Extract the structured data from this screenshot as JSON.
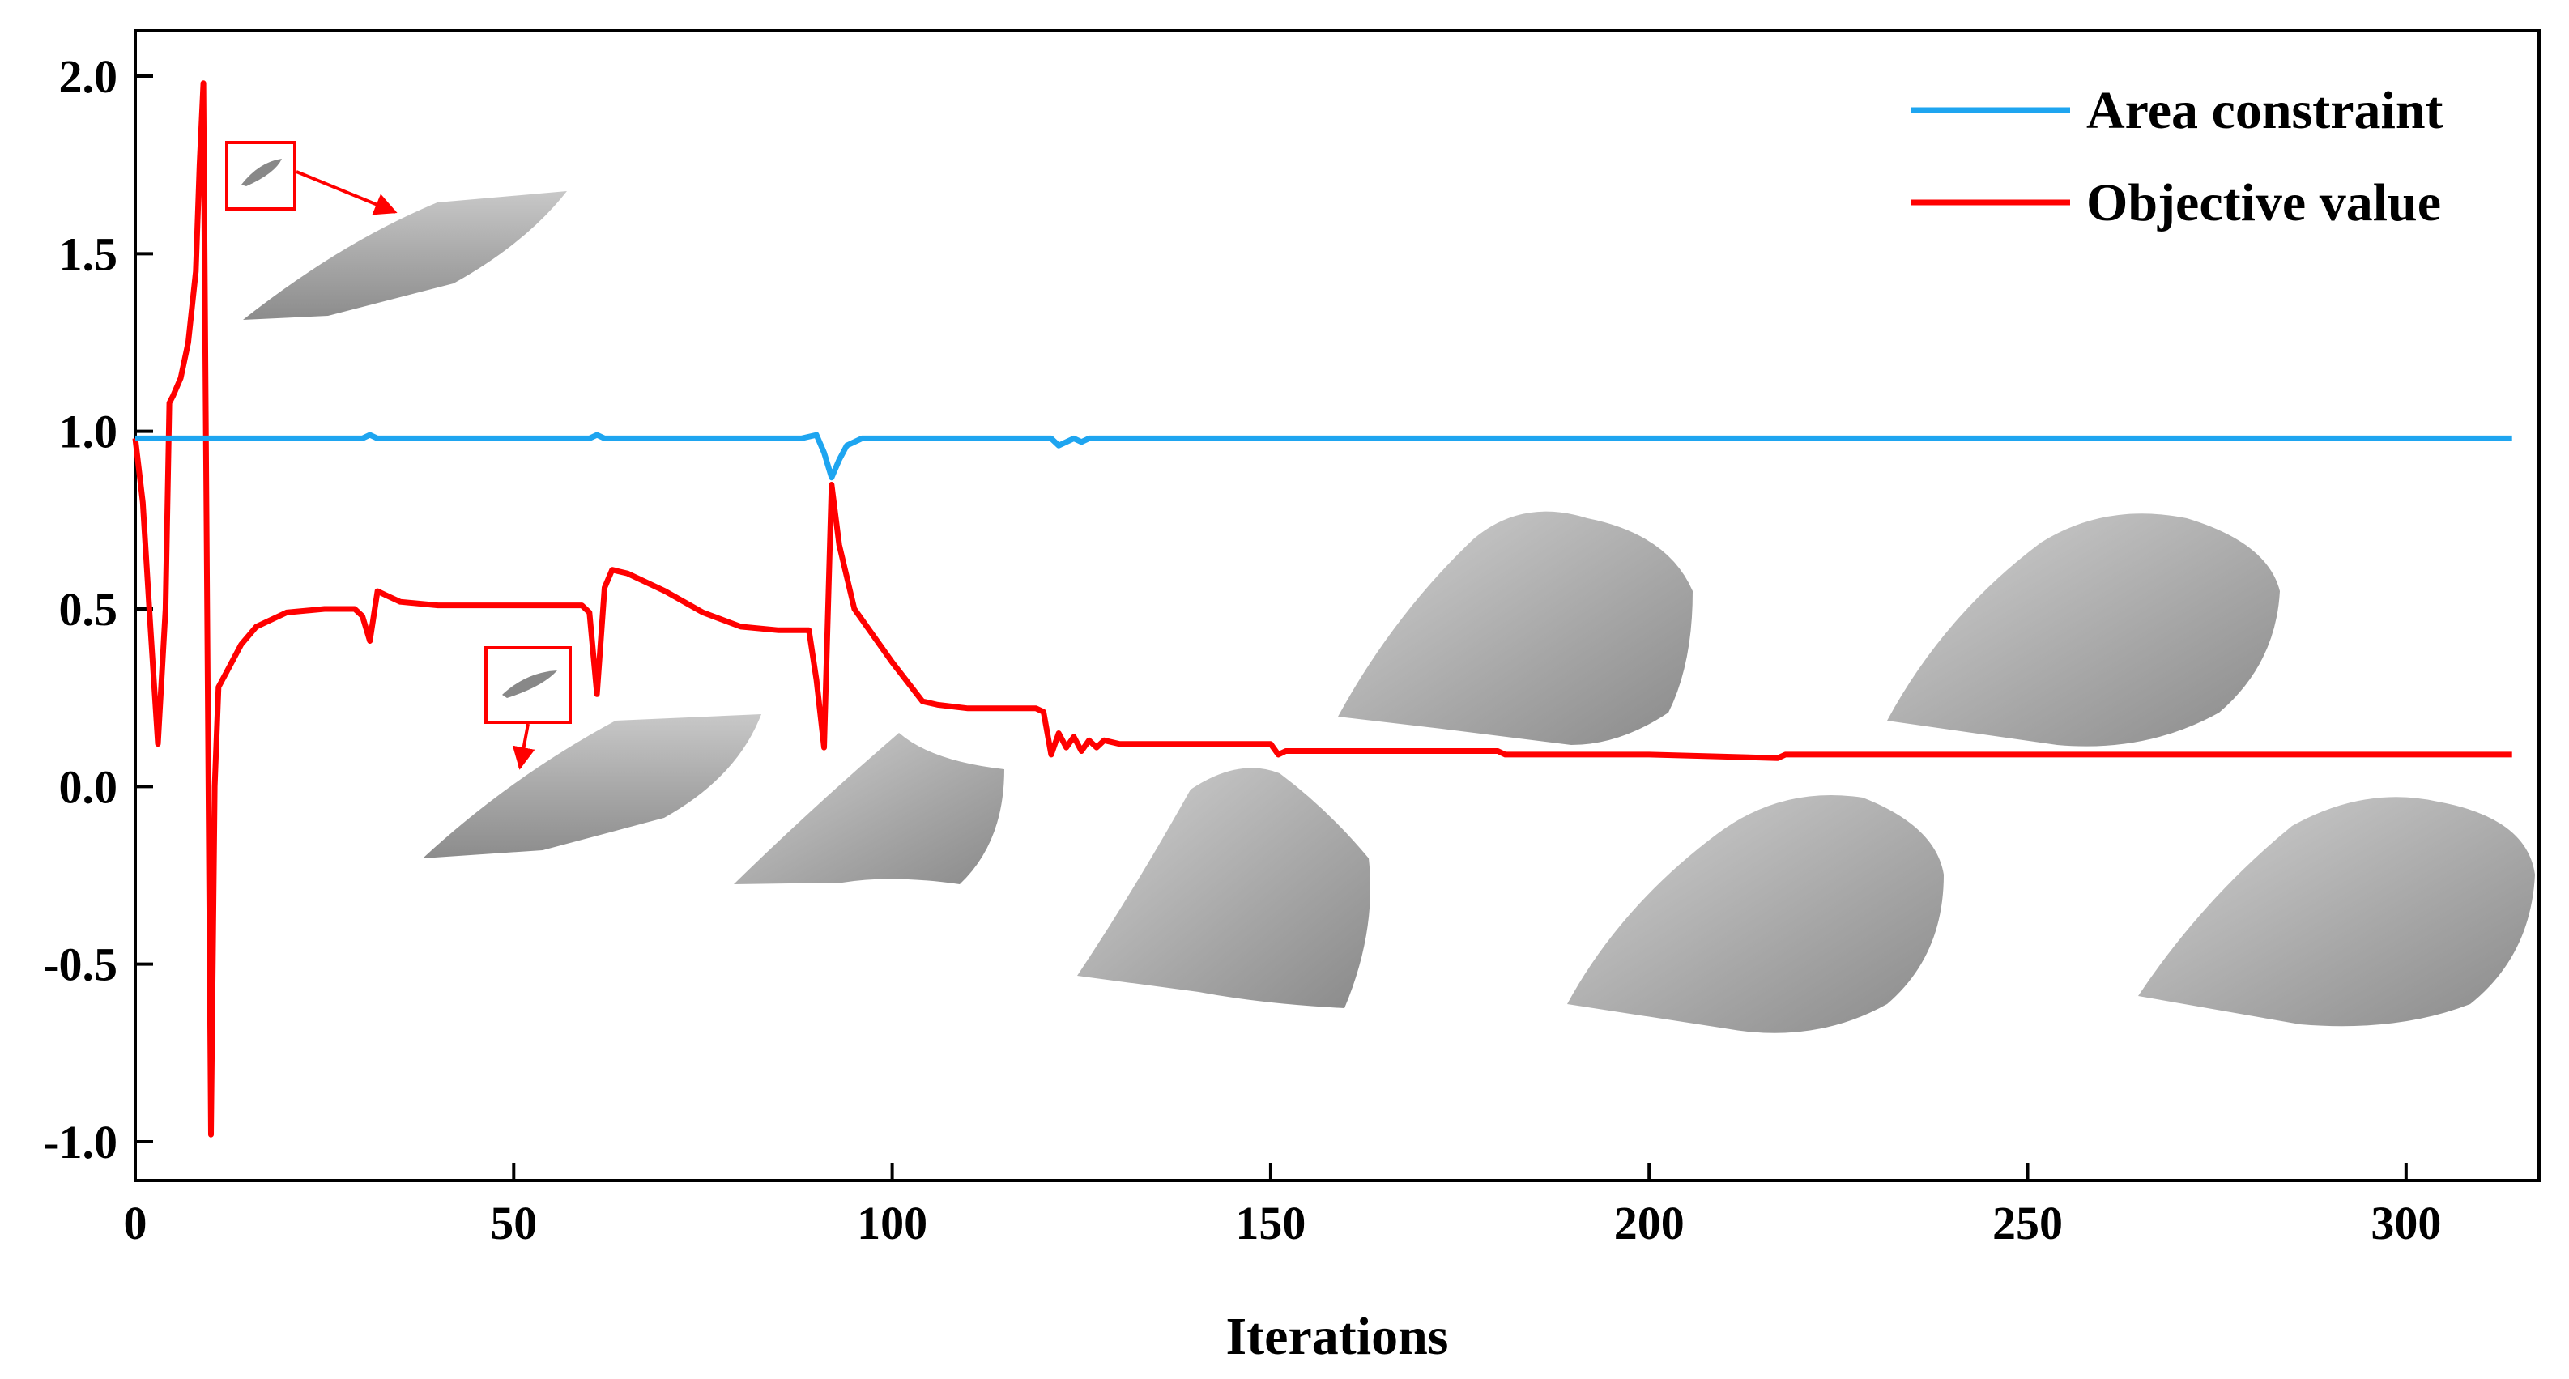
{
  "chart_data": {
    "type": "line",
    "title": "",
    "xlabel": "Iterations",
    "ylabel": "",
    "xlim": [
      0,
      318
    ],
    "ylim": [
      -1.1,
      2.0
    ],
    "xticks": [
      0,
      50,
      100,
      150,
      200,
      250,
      300
    ],
    "yticks": [
      -1.0,
      -0.5,
      0.0,
      0.5,
      1.0,
      1.5,
      2.0
    ],
    "xtick_labels": [
      "0",
      "50",
      "100",
      "150",
      "200",
      "250",
      "300"
    ],
    "ytick_labels": [
      "-1.0",
      "-0.5",
      "0.0",
      "0.5",
      "1.0",
      "1.5",
      "2.0"
    ],
    "legend_position": "top-right",
    "series": [
      {
        "name": "Area constraint",
        "color": "#1ea5f0",
        "points": [
          [
            0,
            0.98
          ],
          [
            2,
            0.98
          ],
          [
            5,
            0.98
          ],
          [
            10,
            0.98
          ],
          [
            20,
            0.98
          ],
          [
            30,
            0.98
          ],
          [
            31,
            0.99
          ],
          [
            32,
            0.98
          ],
          [
            50,
            0.98
          ],
          [
            60,
            0.98
          ],
          [
            61,
            0.99
          ],
          [
            62,
            0.98
          ],
          [
            80,
            0.98
          ],
          [
            88,
            0.98
          ],
          [
            90,
            0.99
          ],
          [
            91,
            0.94
          ],
          [
            92,
            0.87
          ],
          [
            93,
            0.92
          ],
          [
            94,
            0.96
          ],
          [
            96,
            0.98
          ],
          [
            100,
            0.98
          ],
          [
            110,
            0.98
          ],
          [
            120,
            0.98
          ],
          [
            121,
            0.98
          ],
          [
            122,
            0.96
          ],
          [
            123,
            0.97
          ],
          [
            124,
            0.98
          ],
          [
            125,
            0.97
          ],
          [
            126,
            0.98
          ],
          [
            130,
            0.98
          ],
          [
            160,
            0.98
          ],
          [
            200,
            0.98
          ],
          [
            250,
            0.98
          ],
          [
            300,
            0.98
          ],
          [
            314,
            0.98
          ]
        ]
      },
      {
        "name": "Objective value",
        "color": "#ff0000",
        "points": [
          [
            0,
            0.98
          ],
          [
            1,
            0.8
          ],
          [
            2,
            0.45
          ],
          [
            3,
            0.12
          ],
          [
            4,
            0.5
          ],
          [
            4.5,
            1.08
          ],
          [
            5,
            1.1
          ],
          [
            6,
            1.15
          ],
          [
            7,
            1.25
          ],
          [
            8,
            1.45
          ],
          [
            8.5,
            1.75
          ],
          [
            9,
            1.98
          ],
          [
            9.5,
            0.5
          ],
          [
            10,
            -0.98
          ],
          [
            10.5,
            0.0
          ],
          [
            11,
            0.28
          ],
          [
            12,
            0.32
          ],
          [
            14,
            0.4
          ],
          [
            16,
            0.45
          ],
          [
            20,
            0.49
          ],
          [
            25,
            0.5
          ],
          [
            29,
            0.5
          ],
          [
            30,
            0.48
          ],
          [
            31,
            0.41
          ],
          [
            32,
            0.55
          ],
          [
            33,
            0.54
          ],
          [
            35,
            0.52
          ],
          [
            40,
            0.51
          ],
          [
            50,
            0.51
          ],
          [
            59,
            0.51
          ],
          [
            60,
            0.49
          ],
          [
            61,
            0.26
          ],
          [
            62,
            0.56
          ],
          [
            63,
            0.61
          ],
          [
            65,
            0.6
          ],
          [
            70,
            0.55
          ],
          [
            75,
            0.49
          ],
          [
            80,
            0.45
          ],
          [
            85,
            0.44
          ],
          [
            89,
            0.44
          ],
          [
            90,
            0.3
          ],
          [
            91,
            0.11
          ],
          [
            92,
            0.85
          ],
          [
            93,
            0.68
          ],
          [
            95,
            0.5
          ],
          [
            100,
            0.35
          ],
          [
            104,
            0.24
          ],
          [
            106,
            0.23
          ],
          [
            110,
            0.22
          ],
          [
            119,
            0.22
          ],
          [
            120,
            0.21
          ],
          [
            121,
            0.09
          ],
          [
            122,
            0.15
          ],
          [
            123,
            0.11
          ],
          [
            124,
            0.14
          ],
          [
            125,
            0.1
          ],
          [
            126,
            0.13
          ],
          [
            127,
            0.11
          ],
          [
            128,
            0.13
          ],
          [
            130,
            0.12
          ],
          [
            140,
            0.12
          ],
          [
            150,
            0.12
          ],
          [
            151,
            0.09
          ],
          [
            152,
            0.1
          ],
          [
            160,
            0.1
          ],
          [
            180,
            0.1
          ],
          [
            181,
            0.09
          ],
          [
            200,
            0.09
          ],
          [
            217,
            0.08
          ],
          [
            218,
            0.09
          ],
          [
            250,
            0.09
          ],
          [
            300,
            0.09
          ],
          [
            314,
            0.09
          ]
        ]
      }
    ],
    "annotations": [
      {
        "type": "inset-3d-shape",
        "iteration": 9,
        "description": "thin elongated shape with magnified callout"
      },
      {
        "type": "inset-3d-shape",
        "iteration": 60,
        "description": "thin elongated shape with magnified callout"
      },
      {
        "type": "inset-3d-shape",
        "iteration": 90
      },
      {
        "type": "inset-3d-shape",
        "iteration": 150
      },
      {
        "type": "inset-3d-shape",
        "iteration": 180
      },
      {
        "type": "inset-3d-shape",
        "iteration": 215
      },
      {
        "type": "inset-3d-shape",
        "iteration": 255
      },
      {
        "type": "inset-3d-shape",
        "iteration": 300
      }
    ]
  }
}
